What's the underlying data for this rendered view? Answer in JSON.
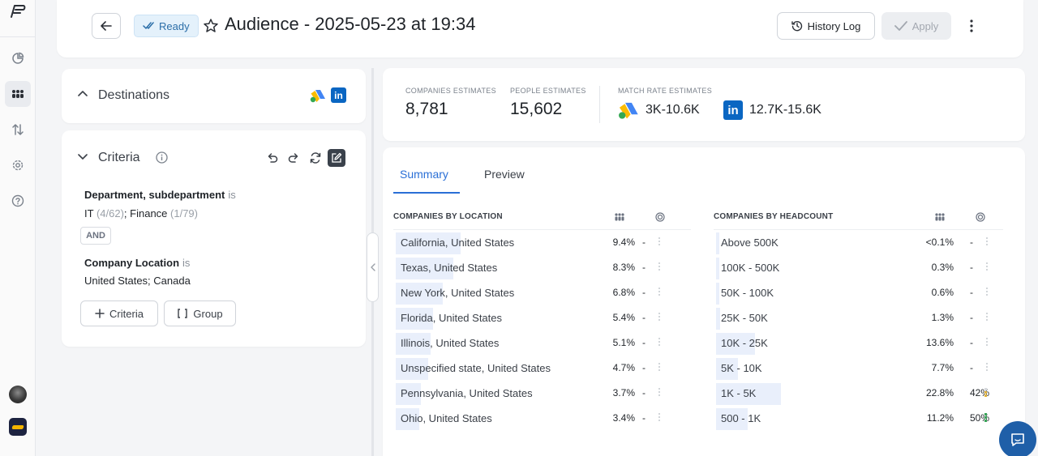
{
  "header": {
    "status": "Ready",
    "title": "Audience - 2025-05-23 at 19:34",
    "history_label": "History Log",
    "apply_label": "Apply"
  },
  "destinations": {
    "label": "Destinations",
    "icons": [
      "google-ads-icon",
      "linkedin-icon"
    ]
  },
  "criteria": {
    "label": "Criteria",
    "conditions": [
      {
        "field": "Department, subdepartment",
        "op": "is",
        "values": [
          {
            "name": "IT",
            "count": "(4/62)"
          },
          {
            "name": "Finance",
            "count": "(1/79)"
          }
        ]
      },
      {
        "field": "Company Location",
        "op": "is",
        "value": "United States; Canada"
      }
    ],
    "connector": "AND",
    "add_criteria_label": "Criteria",
    "add_group_label": "Group"
  },
  "estimates": {
    "companies_label": "COMPANIES ESTIMATES",
    "companies_value": "8,781",
    "people_label": "PEOPLE ESTIMATES",
    "people_value": "15,602",
    "match_label": "MATCH RATE ESTIMATES",
    "google_match": "3K-10.6K",
    "linkedin_match": "12.7K-15.6K"
  },
  "tabs": {
    "summary": "Summary",
    "preview": "Preview"
  },
  "location_table": {
    "title": "COMPANIES BY LOCATION",
    "rows": [
      {
        "name": "California, United States",
        "pct": "9.4%",
        "share": 9.4,
        "match": "-"
      },
      {
        "name": "Texas, United States",
        "pct": "8.3%",
        "share": 8.3,
        "match": "-"
      },
      {
        "name": "New York, United States",
        "pct": "6.8%",
        "share": 6.8,
        "match": "-"
      },
      {
        "name": "Florida, United States",
        "pct": "5.4%",
        "share": 5.4,
        "match": "-"
      },
      {
        "name": "Illinois, United States",
        "pct": "5.1%",
        "share": 5.1,
        "match": "-"
      },
      {
        "name": "Unspecified state, United States",
        "pct": "4.7%",
        "share": 4.7,
        "match": "-"
      },
      {
        "name": "Pennsylvania, United States",
        "pct": "3.7%",
        "share": 3.7,
        "match": "-"
      },
      {
        "name": "Ohio, United States",
        "pct": "3.4%",
        "share": 3.4,
        "match": "-"
      }
    ]
  },
  "headcount_table": {
    "title": "COMPANIES BY HEADCOUNT",
    "rows": [
      {
        "name": "Above 500K",
        "pct": "<0.1%",
        "share": 0.1,
        "match": "-"
      },
      {
        "name": "100K - 500K",
        "pct": "0.3%",
        "share": 0.3,
        "match": "-"
      },
      {
        "name": "50K - 100K",
        "pct": "0.6%",
        "share": 0.6,
        "match": "-"
      },
      {
        "name": "25K - 50K",
        "pct": "1.3%",
        "share": 1.3,
        "match": "-"
      },
      {
        "name": "10K - 25K",
        "pct": "13.6%",
        "share": 13.6,
        "match": "-"
      },
      {
        "name": "5K - 10K",
        "pct": "7.7%",
        "share": 7.7,
        "match": "-"
      },
      {
        "name": "1K - 5K",
        "pct": "22.8%",
        "share": 22.8,
        "match": "42%",
        "level": 2,
        "level_color": "#e0b13a"
      },
      {
        "name": "500 - 1K",
        "pct": "11.2%",
        "share": 11.2,
        "match": "50%",
        "level": 3,
        "level_color": "#3aa55a"
      }
    ]
  }
}
